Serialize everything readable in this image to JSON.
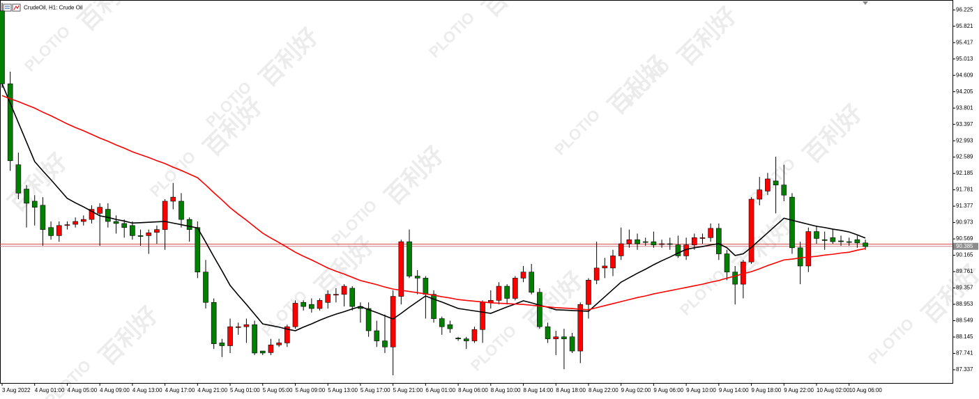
{
  "chart_data": {
    "type": "candlestick",
    "title": "CrudeOil, H1: Crude Oil",
    "categories": [
      "3 Aug 2022",
      null,
      null,
      null,
      "4 Aug 01:00",
      null,
      null,
      null,
      "4 Aug 05:00",
      null,
      null,
      null,
      "4 Aug 09:00",
      null,
      null,
      null,
      "4 Aug 13:00",
      null,
      null,
      null,
      "4 Aug 17:00",
      null,
      null,
      null,
      "4 Aug 21:00",
      null,
      null,
      null,
      "5 Aug 01:00",
      null,
      null,
      null,
      "5 Aug 05:00",
      null,
      null,
      null,
      "5 Aug 09:00",
      null,
      null,
      null,
      "5 Aug 13:00",
      null,
      null,
      null,
      "5 Aug 17:00",
      null,
      null,
      null,
      "5 Aug 21:00",
      null,
      null,
      null,
      "6 Aug 01:00",
      null,
      null,
      null,
      "8 Aug 06:00",
      null,
      null,
      null,
      "8 Aug 10:00",
      null,
      null,
      null,
      "8 Aug 14:00",
      null,
      null,
      null,
      "8 Aug 18:00",
      null,
      null,
      null,
      "8 Aug 22:00",
      null,
      null,
      null,
      "9 Aug 02:00",
      null,
      null,
      null,
      "9 Aug 06:00",
      null,
      null,
      null,
      "9 Aug 10:00",
      null,
      null,
      null,
      "9 Aug 14:00",
      null,
      null,
      null,
      "9 Aug 18:00",
      null,
      null,
      null,
      "9 Aug 22:00",
      null,
      null,
      null,
      "10 Aug 02:00",
      null,
      null,
      null,
      "10 Aug 06:00",
      null,
      null
    ],
    "open": [
      96.2,
      94.4,
      92.4,
      91.8,
      91.5,
      91.4,
      90.85,
      90.65,
      90.9,
      90.93,
      91.0,
      91.05,
      91.2,
      91.3,
      91.0,
      90.95,
      90.9,
      90.65,
      90.65,
      90.73,
      90.8,
      91.5,
      91.5,
      91.05,
      90.85,
      89.75,
      89.0,
      88.0,
      87.93,
      88.38,
      88.4,
      88.45,
      87.8,
      87.76,
      87.95,
      88.0,
      88.4,
      89.0,
      88.95,
      88.85,
      89.0,
      89.18,
      89.2,
      89.35,
      88.9,
      88.85,
      88.3,
      88.05,
      87.9,
      89.15,
      90.5,
      89.65,
      89.6,
      89.2,
      88.6,
      88.45,
      88.12,
      88.1,
      88.05,
      88.33,
      89.0,
      89.05,
      89.4,
      89.1,
      89.6,
      89.75,
      89.25,
      88.4,
      88.1,
      88.15,
      88.15,
      87.8,
      88.95,
      89.55,
      89.85,
      89.85,
      90.15,
      90.45,
      90.55,
      90.5,
      90.5,
      90.43,
      90.45,
      90.42,
      90.15,
      90.42,
      90.58,
      90.6,
      90.83,
      90.2,
      89.75,
      89.45,
      90.0,
      91.55,
      91.75,
      92.0,
      91.9,
      91.6,
      90.35,
      89.9,
      90.75,
      90.55,
      90.6,
      90.52,
      90.5,
      90.55,
      90.47
    ],
    "high": [
      96.4,
      94.7,
      92.7,
      91.9,
      91.65,
      91.6,
      91.0,
      91.0,
      91.0,
      91.1,
      91.15,
      91.4,
      91.45,
      91.45,
      91.15,
      91.05,
      91.0,
      90.8,
      90.8,
      90.9,
      91.55,
      91.95,
      91.7,
      91.1,
      91.0,
      90.05,
      89.1,
      88.1,
      88.6,
      88.5,
      88.6,
      88.55,
      87.8,
      88.1,
      88.1,
      88.45,
      89.05,
      89.05,
      89.1,
      89.1,
      89.3,
      89.35,
      89.45,
      89.4,
      89.0,
      89.0,
      88.55,
      88.7,
      89.3,
      90.55,
      90.8,
      89.8,
      89.65,
      89.3,
      88.65,
      88.55,
      88.15,
      88.15,
      88.4,
      89.05,
      89.3,
      89.5,
      89.45,
      89.65,
      89.9,
      89.95,
      89.35,
      88.5,
      88.3,
      88.35,
      88.25,
      89.0,
      89.6,
      90.5,
      90.1,
      90.3,
      90.85,
      90.8,
      90.7,
      90.6,
      90.75,
      90.55,
      90.6,
      90.65,
      90.6,
      90.7,
      90.7,
      90.95,
      90.95,
      90.3,
      89.9,
      90.05,
      91.6,
      92.1,
      92.2,
      92.6,
      92.4,
      91.7,
      90.5,
      90.85,
      90.9,
      90.75,
      90.8,
      90.65,
      90.6,
      90.65,
      90.55
    ],
    "low": [
      94.3,
      92.25,
      91.55,
      90.85,
      90.9,
      90.4,
      90.55,
      90.5,
      90.8,
      90.85,
      90.9,
      90.95,
      90.4,
      90.85,
      90.7,
      90.6,
      90.55,
      90.4,
      90.2,
      90.45,
      90.3,
      91.3,
      90.85,
      90.5,
      89.6,
      88.85,
      87.85,
      87.65,
      87.75,
      88.2,
      88.0,
      87.7,
      87.7,
      87.7,
      87.9,
      87.9,
      88.35,
      88.8,
      88.75,
      88.8,
      88.85,
      89.0,
      88.9,
      88.8,
      88.5,
      88.15,
      87.9,
      87.75,
      87.2,
      88.95,
      89.6,
      89.2,
      88.6,
      88.5,
      88.2,
      88.25,
      88.05,
      87.85,
      88.0,
      88.0,
      88.85,
      88.95,
      88.95,
      89.05,
      89.5,
      89.2,
      88.35,
      88.0,
      87.7,
      87.35,
      87.75,
      87.5,
      88.6,
      89.45,
      89.6,
      89.65,
      90.05,
      90.35,
      90.3,
      90.4,
      90.35,
      90.35,
      90.3,
      90.1,
      90.05,
      90.3,
      90.45,
      90.5,
      90.05,
      89.55,
      88.95,
      89.1,
      89.95,
      91.4,
      91.65,
      91.2,
      91.5,
      90.2,
      89.45,
      89.75,
      90.45,
      90.3,
      90.45,
      90.4,
      90.4,
      90.35,
      90.3
    ],
    "close": [
      94.4,
      92.5,
      91.7,
      91.45,
      91.35,
      90.8,
      90.65,
      90.9,
      90.92,
      91.0,
      91.05,
      91.3,
      91.35,
      91.0,
      90.95,
      90.85,
      90.65,
      90.63,
      90.72,
      90.8,
      91.5,
      91.6,
      91.05,
      90.8,
      89.75,
      89.0,
      87.98,
      87.93,
      88.4,
      88.4,
      88.45,
      87.75,
      87.75,
      87.95,
      88.0,
      88.4,
      88.98,
      88.9,
      88.85,
      89.05,
      89.2,
      89.2,
      89.4,
      88.9,
      88.85,
      88.3,
      88.05,
      87.9,
      89.15,
      90.5,
      89.65,
      89.6,
      89.2,
      88.6,
      88.4,
      88.35,
      88.1,
      88.05,
      88.33,
      89.0,
      89.05,
      89.4,
      89.1,
      89.6,
      89.75,
      89.25,
      88.4,
      88.1,
      88.15,
      88.1,
      87.8,
      88.95,
      89.55,
      89.85,
      89.9,
      90.15,
      90.45,
      90.55,
      90.45,
      90.49,
      90.42,
      90.45,
      90.44,
      90.15,
      90.42,
      90.6,
      90.6,
      90.83,
      90.2,
      89.75,
      89.45,
      90.0,
      91.55,
      91.78,
      92.05,
      91.9,
      91.65,
      90.35,
      89.9,
      90.75,
      90.58,
      90.53,
      90.5,
      90.5,
      90.49,
      90.47,
      90.38
    ],
    "up_color": "#ff0000",
    "down_color": "#008000",
    "moving_averages": [
      {
        "color": "#000000",
        "values": [
          94.4,
          93.92,
          93.44,
          92.96,
          92.48,
          92.25,
          92.03,
          91.8,
          91.57,
          91.46,
          91.36,
          91.25,
          91.14,
          91.1,
          91.05,
          91.01,
          90.96,
          90.97,
          90.98,
          90.99,
          91.0,
          90.96,
          90.92,
          90.88,
          90.84,
          90.49,
          90.13,
          89.78,
          89.42,
          89.18,
          88.95,
          88.71,
          88.47,
          88.43,
          88.39,
          88.34,
          88.3,
          88.39,
          88.47,
          88.56,
          88.64,
          88.71,
          88.77,
          88.84,
          88.9,
          88.82,
          88.75,
          88.67,
          88.59,
          88.73,
          88.88,
          89.02,
          89.16,
          89.08,
          89.01,
          88.93,
          88.85,
          88.82,
          88.79,
          88.76,
          88.73,
          88.81,
          88.89,
          88.96,
          89.04,
          88.99,
          88.93,
          88.88,
          88.82,
          88.81,
          88.8,
          88.79,
          88.78,
          88.96,
          89.14,
          89.32,
          89.5,
          89.61,
          89.72,
          89.82,
          89.93,
          90.03,
          90.12,
          90.22,
          90.31,
          90.35,
          90.38,
          90.42,
          90.45,
          90.35,
          90.16,
          90.2,
          90.36,
          90.54,
          90.72,
          90.9,
          91.08,
          91.03,
          90.98,
          90.93,
          90.88,
          90.85,
          90.81,
          90.78,
          90.74,
          90.67,
          90.59
        ]
      },
      {
        "color": "#ff0000",
        "values": [
          94.11,
          94.03,
          93.96,
          93.88,
          93.8,
          93.7,
          93.61,
          93.51,
          93.41,
          93.32,
          93.24,
          93.15,
          93.06,
          92.98,
          92.89,
          92.81,
          92.72,
          92.65,
          92.58,
          92.5,
          92.43,
          92.34,
          92.26,
          92.17,
          92.08,
          91.9,
          91.71,
          91.53,
          91.34,
          91.18,
          91.03,
          90.87,
          90.71,
          90.59,
          90.48,
          90.36,
          90.24,
          90.14,
          90.05,
          89.95,
          89.85,
          89.77,
          89.7,
          89.62,
          89.54,
          89.49,
          89.44,
          89.38,
          89.33,
          89.3,
          89.27,
          89.24,
          89.21,
          89.18,
          89.14,
          89.11,
          89.07,
          89.05,
          89.03,
          89.01,
          88.99,
          88.98,
          88.97,
          88.96,
          88.95,
          88.93,
          88.91,
          88.89,
          88.87,
          88.86,
          88.85,
          88.83,
          88.82,
          88.87,
          88.92,
          88.97,
          89.02,
          89.07,
          89.12,
          89.16,
          89.21,
          89.25,
          89.29,
          89.33,
          89.37,
          89.41,
          89.45,
          89.5,
          89.54,
          89.6,
          89.65,
          89.71,
          89.76,
          89.83,
          89.91,
          89.98,
          90.05,
          90.07,
          90.1,
          90.12,
          90.14,
          90.17,
          90.19,
          90.22,
          90.24,
          90.29,
          90.33
        ]
      }
    ],
    "bid": 90.385,
    "ask": 90.44,
    "ylim": [
      87.01,
      96.47
    ],
    "yticks": [
      96.225,
      95.821,
      95.417,
      95.013,
      94.609,
      94.205,
      93.801,
      93.397,
      92.993,
      92.589,
      92.185,
      91.781,
      91.377,
      90.973,
      90.569,
      90.165,
      89.761,
      89.357,
      88.953,
      88.549,
      88.145,
      87.741,
      87.337
    ],
    "watermark": [
      "百利好",
      "PLOTIO"
    ]
  }
}
